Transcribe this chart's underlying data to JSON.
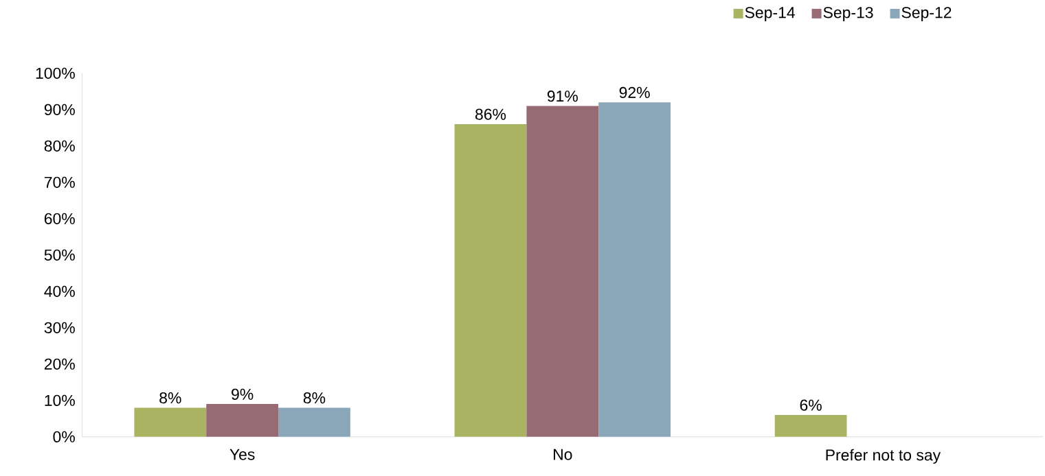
{
  "chart_data": {
    "type": "bar",
    "categories": [
      "Yes",
      "No",
      "Prefer not to say"
    ],
    "series": [
      {
        "name": "Sep-14",
        "color": "#aab361",
        "values": [
          8,
          86,
          6
        ],
        "value_labels": [
          "8%",
          "86%",
          "6%"
        ]
      },
      {
        "name": "Sep-13",
        "color": "#976b74",
        "values": [
          9,
          91,
          null
        ],
        "value_labels": [
          "9%",
          "91%",
          null
        ]
      },
      {
        "name": "Sep-12",
        "color": "#8aa7b9",
        "values": [
          8,
          92,
          null
        ],
        "value_labels": [
          "8%",
          "92%",
          null
        ]
      }
    ],
    "ylim": [
      0,
      100
    ],
    "yticks": [
      {
        "value": 0,
        "label": "0%"
      },
      {
        "value": 10,
        "label": "10%"
      },
      {
        "value": 20,
        "label": "20%"
      },
      {
        "value": 30,
        "label": "30%"
      },
      {
        "value": 40,
        "label": "40%"
      },
      {
        "value": 50,
        "label": "50%"
      },
      {
        "value": 60,
        "label": "60%"
      },
      {
        "value": 70,
        "label": "70%"
      },
      {
        "value": 80,
        "label": "80%"
      },
      {
        "value": 90,
        "label": "90%"
      },
      {
        "value": 100,
        "label": "100%"
      }
    ],
    "legend": "top right",
    "grid": false
  }
}
